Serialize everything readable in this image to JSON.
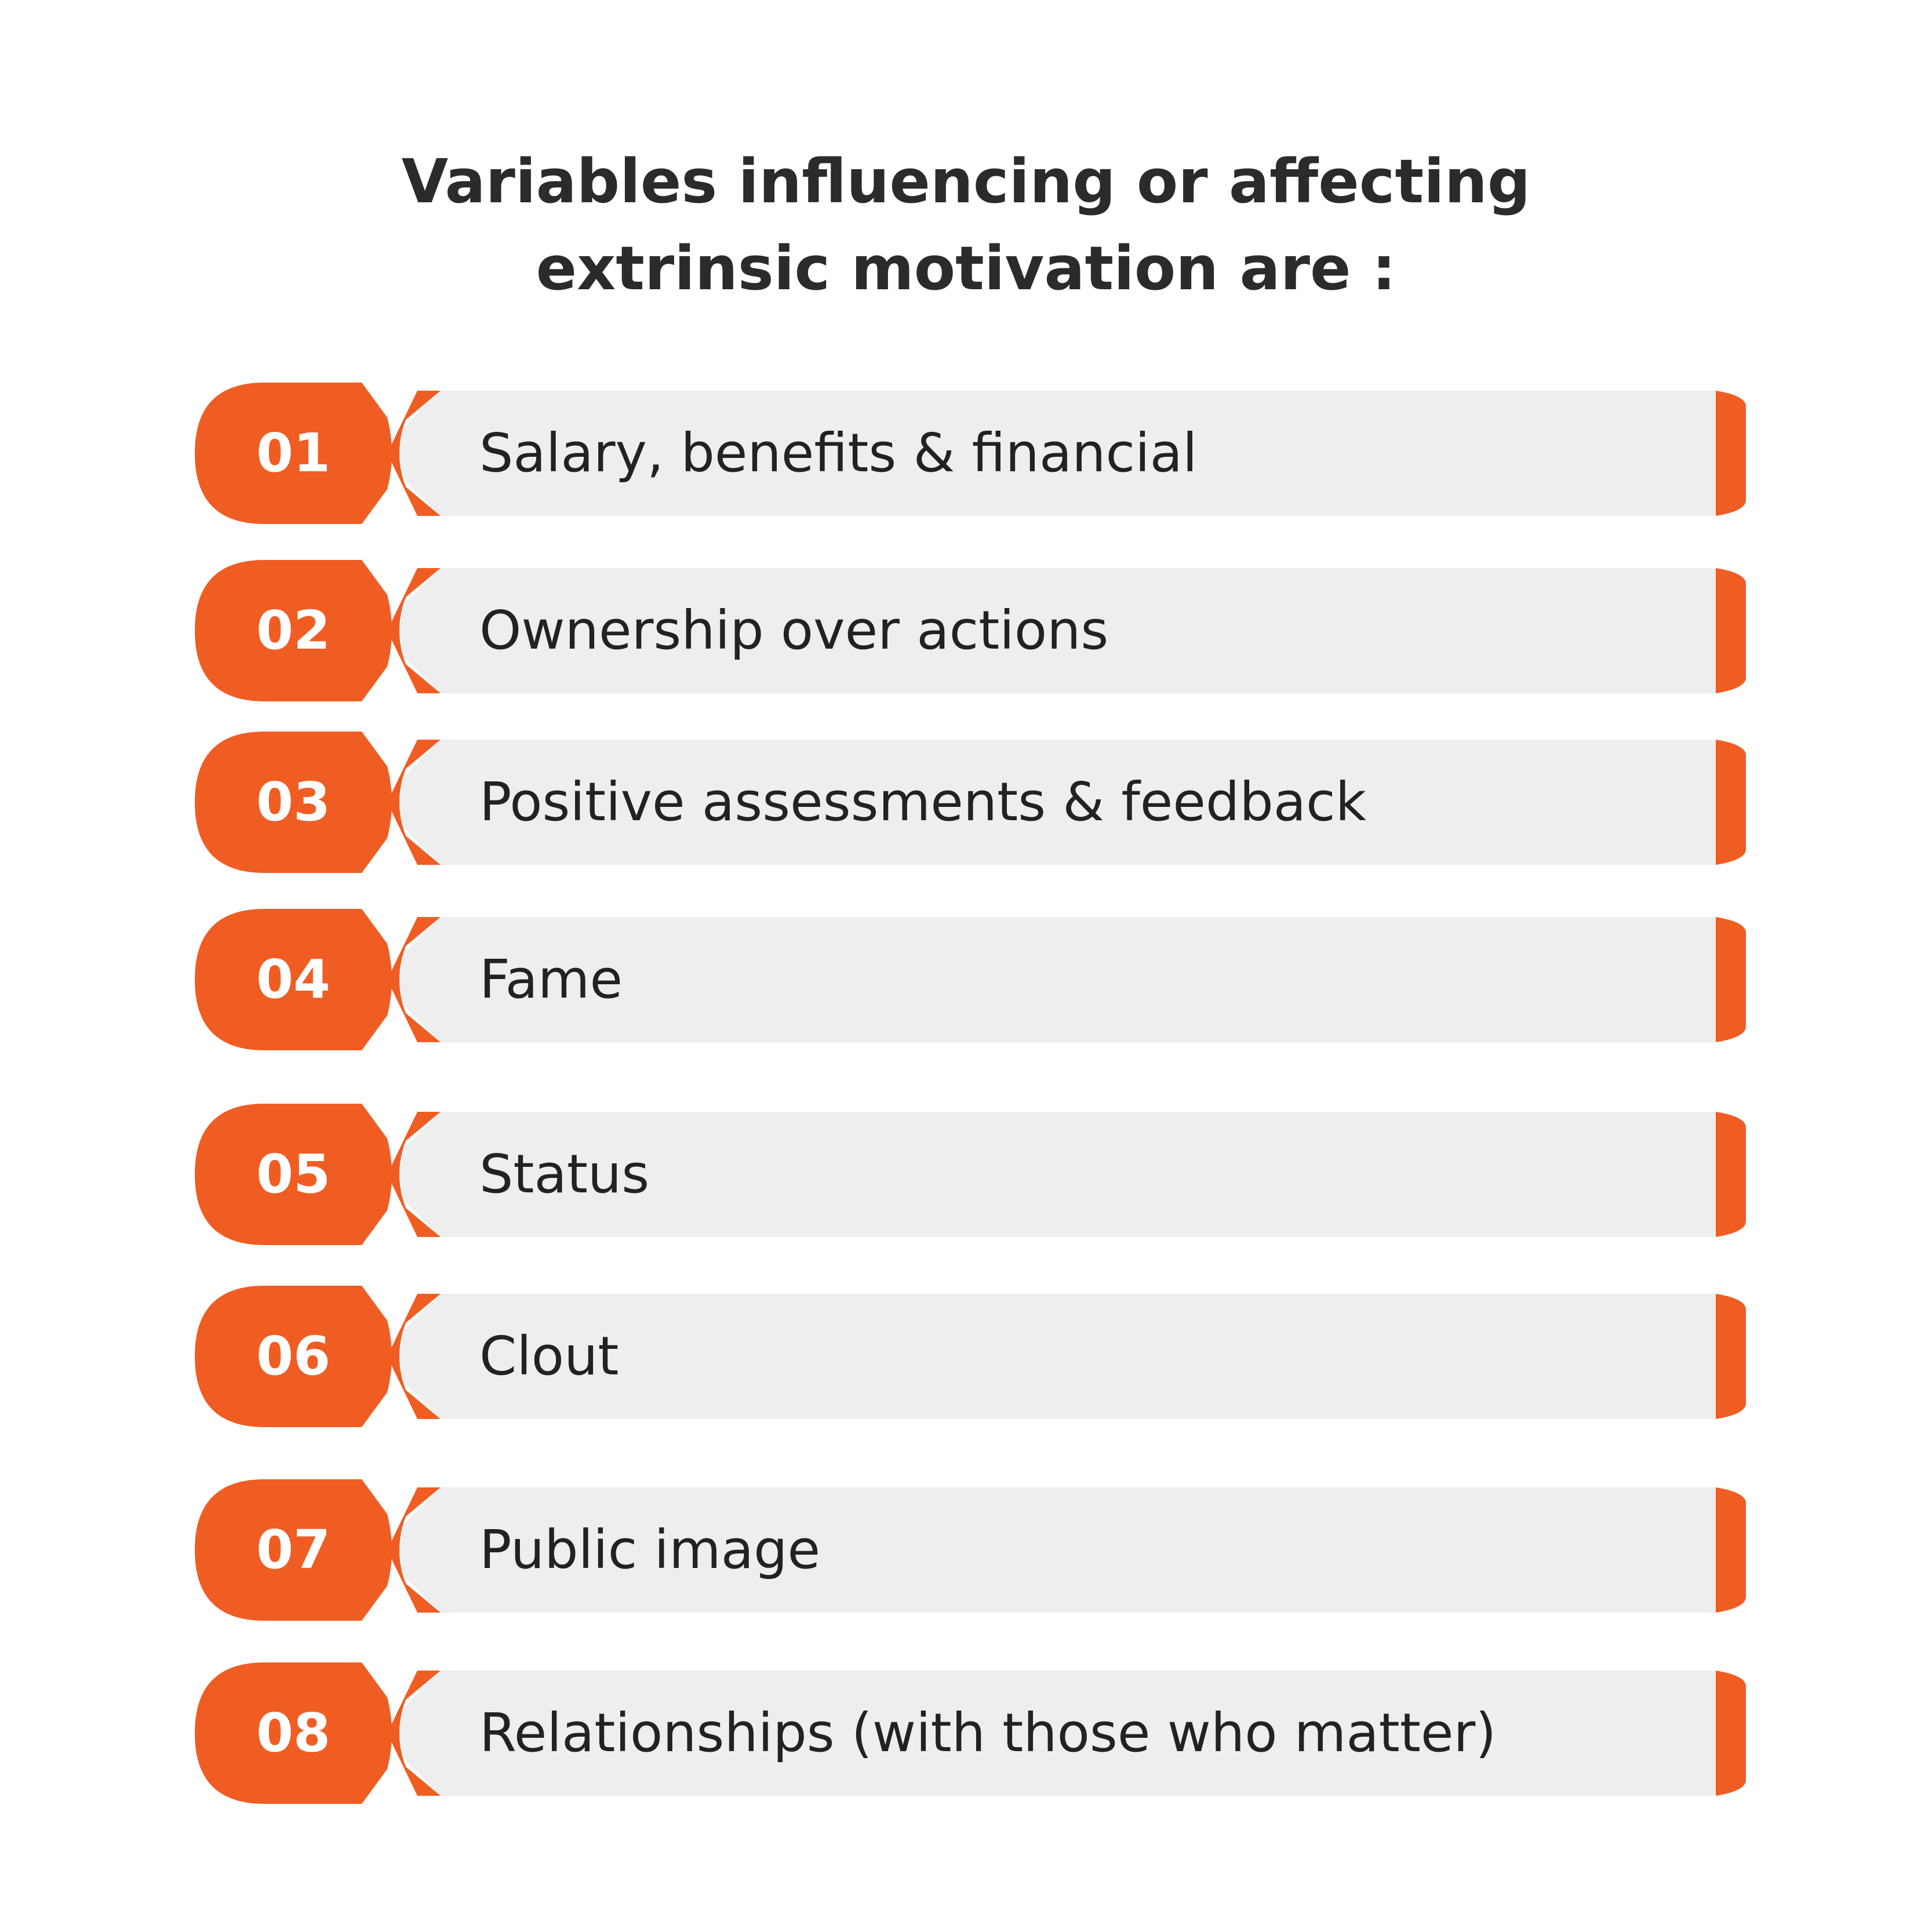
{
  "title": {
    "line1": "Variables influencing or affecting",
    "line2": "extrinsic motivation are :"
  },
  "colors": {
    "accent": "#F05D23",
    "bar": "#EEEEEE",
    "text": "#222222",
    "title": "#2B2B2B"
  },
  "items": [
    {
      "number": "01",
      "label": "Salary, benefits & financial"
    },
    {
      "number": "02",
      "label": "Ownership over actions"
    },
    {
      "number": "03",
      "label": "Positive assessments & feedback"
    },
    {
      "number": "04",
      "label": "Fame"
    },
    {
      "number": "05",
      "label": "Status"
    },
    {
      "number": "06",
      "label": "Clout"
    },
    {
      "number": "07",
      "label": "Public image"
    },
    {
      "number": "08",
      "label": "Relationships (with those who matter)"
    }
  ]
}
